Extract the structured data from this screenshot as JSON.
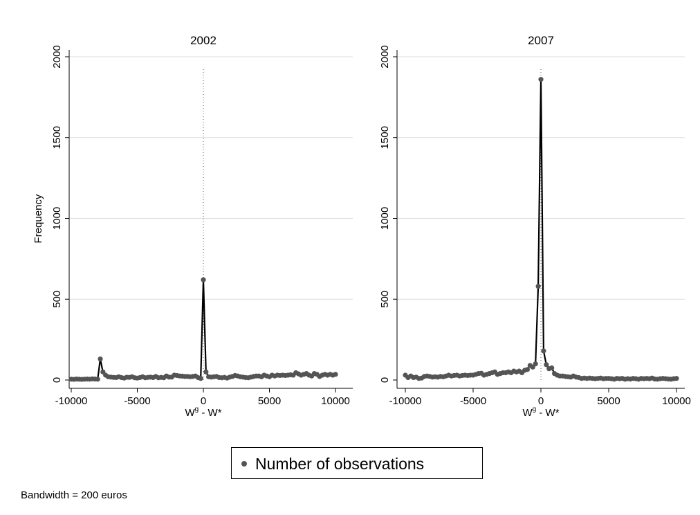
{
  "chart_data": [
    {
      "type": "line",
      "title": "2002",
      "ylabel": "Frequency",
      "xlabel_main": "W",
      "xlabel_sup": "g",
      "xlabel_rest": " - W*",
      "xlim": [
        -10000,
        10000
      ],
      "ylim": [
        0,
        2000
      ],
      "xticks": [
        -10000,
        -5000,
        0,
        5000,
        10000
      ],
      "yticks": [
        0,
        500,
        1000,
        1500,
        2000
      ],
      "grid": true,
      "reference_line_x": 0,
      "series": [
        {
          "x": [
            -10000,
            -9800,
            -9600,
            -9400,
            -9200,
            -9000,
            -8800,
            -8600,
            -8400,
            -8200,
            -8000,
            -7800,
            -7600,
            -7400,
            -7200,
            -7000,
            -6800,
            -6600,
            -6400,
            -6200,
            -6000,
            -5800,
            -5600,
            -5400,
            -5200,
            -5000,
            -4800,
            -4600,
            -4400,
            -4200,
            -4000,
            -3800,
            -3600,
            -3400,
            -3200,
            -3000,
            -2800,
            -2600,
            -2400,
            -2200,
            -2000,
            -1800,
            -1600,
            -1400,
            -1200,
            -1000,
            -800,
            -600,
            -400,
            -200,
            0,
            200,
            400,
            600,
            800,
            1000,
            1200,
            1400,
            1600,
            1800,
            2000,
            2200,
            2400,
            2600,
            2800,
            3000,
            3200,
            3400,
            3600,
            3800,
            4000,
            4200,
            4400,
            4600,
            4800,
            5000,
            5200,
            5400,
            5600,
            5800,
            6000,
            6200,
            6400,
            6600,
            6800,
            7000,
            7200,
            7400,
            7600,
            7800,
            8000,
            8200,
            8400,
            8600,
            8800,
            9000,
            9200,
            9400,
            9600,
            9800,
            10000
          ],
          "values": [
            5,
            4,
            6,
            5,
            4,
            5,
            6,
            5,
            7,
            6,
            5,
            130,
            50,
            30,
            20,
            18,
            16,
            15,
            20,
            15,
            12,
            17,
            16,
            20,
            14,
            12,
            15,
            20,
            14,
            16,
            18,
            15,
            22,
            14,
            16,
            14,
            25,
            18,
            18,
            30,
            28,
            25,
            24,
            22,
            22,
            20,
            22,
            25,
            15,
            10,
            620,
            50,
            20,
            18,
            20,
            22,
            15,
            14,
            16,
            12,
            18,
            22,
            28,
            25,
            20,
            18,
            15,
            14,
            18,
            22,
            25,
            25,
            20,
            30,
            25,
            20,
            30,
            25,
            30,
            28,
            30,
            28,
            30,
            32,
            30,
            45,
            38,
            30,
            35,
            40,
            30,
            25,
            40,
            35,
            22,
            30,
            35,
            30,
            35,
            30,
            35
          ]
        }
      ]
    },
    {
      "type": "line",
      "title": "2007",
      "ylabel": "",
      "xlabel_main": "W",
      "xlabel_sup": "g",
      "xlabel_rest": " - W*",
      "xlim": [
        -10000,
        10000
      ],
      "ylim": [
        0,
        2000
      ],
      "xticks": [
        -10000,
        -5000,
        0,
        5000,
        10000
      ],
      "yticks": [
        0,
        500,
        1000,
        1500,
        2000
      ],
      "grid": true,
      "reference_line_x": 0,
      "series": [
        {
          "x": [
            -10000,
            -9800,
            -9600,
            -9400,
            -9200,
            -9000,
            -8800,
            -8600,
            -8400,
            -8200,
            -8000,
            -7800,
            -7600,
            -7400,
            -7200,
            -7000,
            -6800,
            -6600,
            -6400,
            -6200,
            -6000,
            -5800,
            -5600,
            -5400,
            -5200,
            -5000,
            -4800,
            -4600,
            -4400,
            -4200,
            -4000,
            -3800,
            -3600,
            -3400,
            -3200,
            -3000,
            -2800,
            -2600,
            -2400,
            -2200,
            -2000,
            -1800,
            -1600,
            -1400,
            -1200,
            -1000,
            -800,
            -600,
            -400,
            -200,
            0,
            200,
            400,
            600,
            800,
            1000,
            1200,
            1400,
            1600,
            1800,
            2000,
            2200,
            2400,
            2600,
            2800,
            3000,
            3200,
            3400,
            3600,
            3800,
            4000,
            4200,
            4400,
            4600,
            4800,
            5000,
            5200,
            5400,
            5600,
            5800,
            6000,
            6200,
            6400,
            6600,
            6800,
            7000,
            7200,
            7400,
            7600,
            7800,
            8000,
            8200,
            8400,
            8600,
            8800,
            9000,
            9200,
            9400,
            9600,
            9800,
            10000
          ],
          "values": [
            30,
            15,
            25,
            15,
            18,
            10,
            12,
            22,
            25,
            22,
            18,
            20,
            18,
            22,
            20,
            25,
            30,
            25,
            28,
            30,
            25,
            28,
            30,
            28,
            30,
            30,
            35,
            40,
            42,
            30,
            35,
            40,
            45,
            50,
            35,
            40,
            45,
            45,
            50,
            45,
            55,
            50,
            55,
            45,
            60,
            65,
            90,
            80,
            100,
            580,
            1860,
            180,
            95,
            70,
            75,
            40,
            30,
            25,
            25,
            22,
            20,
            18,
            25,
            18,
            15,
            10,
            12,
            10,
            12,
            10,
            8,
            10,
            12,
            8,
            10,
            10,
            8,
            5,
            10,
            8,
            10,
            5,
            8,
            6,
            10,
            8,
            5,
            10,
            8,
            10,
            8,
            12,
            6,
            5,
            8,
            10,
            8,
            6,
            5,
            8,
            10
          ]
        }
      ]
    }
  ],
  "legend": {
    "label": "Number of observations",
    "marker_color": "#545454"
  },
  "note": "Bandwidth = 200 euros",
  "colors": {
    "line": "#000000",
    "marker": "#545454",
    "grid": "#dcdcdc",
    "reference_line": "#555555"
  }
}
